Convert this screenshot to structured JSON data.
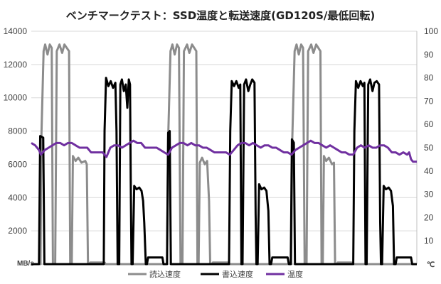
{
  "chart_data": {
    "type": "line",
    "title": "ベンチマークテスト：SSD温度と転送速度(GD120S/最低回転)",
    "left_unit": "MB/s",
    "right_unit": "℃",
    "left_ylim": [
      0,
      14000
    ],
    "left_ticks": [
      "0",
      "2000",
      "4000",
      "6000",
      "8000",
      "10000",
      "12000",
      "14000"
    ],
    "right_ylim": [
      0,
      100
    ],
    "right_ticks": [
      "0",
      "10",
      "20",
      "30",
      "40",
      "50",
      "60",
      "70",
      "80",
      "90",
      "100"
    ],
    "x_range": [
      0,
      100
    ],
    "grid": true,
    "legend_position": "bottom",
    "series": [
      {
        "name": "読込速度",
        "axis": "left",
        "color": "#8c8c8c",
        "points": [
          [
            0,
            0
          ],
          [
            2.4,
            0
          ],
          [
            2.6,
            7500
          ],
          [
            3.2,
            12800
          ],
          [
            3.6,
            13200
          ],
          [
            4.2,
            12600
          ],
          [
            4.8,
            13200
          ],
          [
            5.3,
            13000
          ],
          [
            5.6,
            0
          ],
          [
            6.2,
            0
          ],
          [
            6.6,
            12800
          ],
          [
            7.3,
            13200
          ],
          [
            8,
            12700
          ],
          [
            8.6,
            13200
          ],
          [
            9.8,
            12800
          ],
          [
            10.1,
            0
          ],
          [
            10.5,
            0
          ],
          [
            10.8,
            6500
          ],
          [
            11.5,
            6200
          ],
          [
            12.2,
            6400
          ],
          [
            13,
            6100
          ],
          [
            14,
            6200
          ],
          [
            14.4,
            6000
          ],
          [
            14.7,
            0
          ],
          [
            15,
            0
          ],
          [
            15.3,
            100
          ],
          [
            19,
            100
          ],
          [
            19.3,
            0
          ],
          [
            35.2,
            0
          ],
          [
            35.5,
            7500
          ],
          [
            36.1,
            12800
          ],
          [
            36.6,
            13200
          ],
          [
            37.2,
            12600
          ],
          [
            37.8,
            13200
          ],
          [
            38.3,
            13000
          ],
          [
            38.7,
            0
          ],
          [
            39.2,
            0
          ],
          [
            39.6,
            12800
          ],
          [
            40.4,
            13200
          ],
          [
            41,
            12700
          ],
          [
            41.7,
            13200
          ],
          [
            42.8,
            12800
          ],
          [
            43.1,
            0
          ],
          [
            43.4,
            0
          ],
          [
            43.7,
            6100
          ],
          [
            44.3,
            6400
          ],
          [
            45,
            6000
          ],
          [
            45.6,
            6200
          ],
          [
            46.1,
            3800
          ],
          [
            46.4,
            0
          ],
          [
            46.8,
            0
          ],
          [
            47.1,
            100
          ],
          [
            51,
            100
          ],
          [
            51.3,
            0
          ],
          [
            67.4,
            0
          ],
          [
            67.7,
            7500
          ],
          [
            68.3,
            12800
          ],
          [
            68.8,
            13200
          ],
          [
            69.4,
            12600
          ],
          [
            70,
            13200
          ],
          [
            70.5,
            13000
          ],
          [
            70.9,
            0
          ],
          [
            71.4,
            0
          ],
          [
            71.8,
            12800
          ],
          [
            72.6,
            13200
          ],
          [
            73.2,
            12700
          ],
          [
            73.9,
            13200
          ],
          [
            75,
            12800
          ],
          [
            75.3,
            0
          ],
          [
            75.6,
            0
          ],
          [
            75.9,
            6500
          ],
          [
            76.5,
            6200
          ],
          [
            77.2,
            6400
          ],
          [
            78,
            6000
          ],
          [
            78.5,
            6100
          ],
          [
            78.8,
            0
          ],
          [
            79.2,
            0
          ],
          [
            79.5,
            100
          ],
          [
            83,
            100
          ],
          [
            83.3,
            0
          ],
          [
            100,
            0
          ]
        ]
      },
      {
        "name": "書込速度",
        "axis": "left",
        "color": "#000000",
        "points": [
          [
            0,
            0
          ],
          [
            2,
            0
          ],
          [
            2.3,
            7700
          ],
          [
            3.1,
            7600
          ],
          [
            3.4,
            0
          ],
          [
            18.8,
            0
          ],
          [
            19,
            8000
          ],
          [
            19.4,
            11200
          ],
          [
            20,
            10700
          ],
          [
            20.6,
            11000
          ],
          [
            21.2,
            10600
          ],
          [
            21.8,
            10900
          ],
          [
            22.1,
            8000
          ],
          [
            22.4,
            0
          ],
          [
            22.8,
            0
          ],
          [
            23.1,
            10800
          ],
          [
            23.5,
            11100
          ],
          [
            24,
            10400
          ],
          [
            24.5,
            10800
          ],
          [
            24.9,
            9400
          ],
          [
            25.3,
            11100
          ],
          [
            25.6,
            10800
          ],
          [
            25.8,
            5000
          ],
          [
            26,
            0
          ],
          [
            26.3,
            0
          ],
          [
            26.7,
            4700
          ],
          [
            27.3,
            4500
          ],
          [
            28,
            4600
          ],
          [
            28.6,
            4400
          ],
          [
            29,
            3800
          ],
          [
            29.3,
            2500
          ],
          [
            29.7,
            0
          ],
          [
            30,
            0
          ],
          [
            30.3,
            400
          ],
          [
            34,
            400
          ],
          [
            34.3,
            0
          ],
          [
            35.2,
            0
          ],
          [
            35.5,
            7900
          ],
          [
            35.9,
            8000
          ],
          [
            36.2,
            0
          ],
          [
            51.3,
            0
          ],
          [
            51.6,
            8000
          ],
          [
            52,
            11000
          ],
          [
            52.6,
            10700
          ],
          [
            53.2,
            11000
          ],
          [
            53.8,
            10600
          ],
          [
            54.2,
            10800
          ],
          [
            54.5,
            0
          ],
          [
            54.8,
            0
          ],
          [
            55.2,
            10800
          ],
          [
            55.7,
            11100
          ],
          [
            56.3,
            10400
          ],
          [
            56.8,
            10800
          ],
          [
            57.3,
            11100
          ],
          [
            57.9,
            10900
          ],
          [
            58.2,
            3000
          ],
          [
            58.4,
            0
          ],
          [
            58.7,
            0
          ],
          [
            59.1,
            4800
          ],
          [
            59.7,
            4500
          ],
          [
            60.4,
            4600
          ],
          [
            61,
            4400
          ],
          [
            61.5,
            3200
          ],
          [
            61.8,
            0
          ],
          [
            62.2,
            0
          ],
          [
            62.5,
            400
          ],
          [
            66.5,
            400
          ],
          [
            66.8,
            0
          ],
          [
            67.3,
            0
          ],
          [
            67.6,
            7500
          ],
          [
            68.1,
            7300
          ],
          [
            68.4,
            0
          ],
          [
            83.5,
            0
          ],
          [
            83.8,
            8000
          ],
          [
            84.2,
            11000
          ],
          [
            84.8,
            10600
          ],
          [
            85.4,
            11000
          ],
          [
            86,
            10700
          ],
          [
            86.4,
            10900
          ],
          [
            86.7,
            0
          ],
          [
            87,
            0
          ],
          [
            87.4,
            10800
          ],
          [
            87.9,
            11100
          ],
          [
            88.5,
            10400
          ],
          [
            89,
            10900
          ],
          [
            89.6,
            11000
          ],
          [
            90.2,
            10800
          ],
          [
            90.5,
            2500
          ],
          [
            90.7,
            0
          ],
          [
            91,
            0
          ],
          [
            91.4,
            4700
          ],
          [
            92,
            4500
          ],
          [
            92.7,
            4600
          ],
          [
            93.3,
            4400
          ],
          [
            93.8,
            3500
          ],
          [
            94.1,
            0
          ],
          [
            94.5,
            0
          ],
          [
            94.8,
            400
          ],
          [
            98.5,
            400
          ],
          [
            98.8,
            0
          ],
          [
            100,
            0
          ]
        ]
      },
      {
        "name": "温度",
        "axis": "right",
        "color": "#7030a0",
        "points": [
          [
            0,
            52
          ],
          [
            1,
            51
          ],
          [
            2,
            49
          ],
          [
            2.5,
            47
          ],
          [
            3.5,
            49
          ],
          [
            4.5,
            50
          ],
          [
            5.5,
            51
          ],
          [
            6.5,
            52
          ],
          [
            7.5,
            52
          ],
          [
            8.5,
            51
          ],
          [
            9.5,
            52
          ],
          [
            10.5,
            52
          ],
          [
            11.5,
            51
          ],
          [
            12.5,
            50
          ],
          [
            13.5,
            50
          ],
          [
            14.5,
            50
          ],
          [
            15.5,
            48
          ],
          [
            16.5,
            48
          ],
          [
            17.5,
            48
          ],
          [
            18.5,
            48
          ],
          [
            19.5,
            46
          ],
          [
            20.5,
            50
          ],
          [
            21.5,
            51
          ],
          [
            22.5,
            51
          ],
          [
            23.5,
            50
          ],
          [
            24.5,
            51
          ],
          [
            25.5,
            52
          ],
          [
            26.5,
            53
          ],
          [
            27.5,
            52
          ],
          [
            28.5,
            52
          ],
          [
            29.5,
            50
          ],
          [
            30.5,
            50
          ],
          [
            31.5,
            50
          ],
          [
            32.5,
            50
          ],
          [
            33.5,
            49
          ],
          [
            34.5,
            48
          ],
          [
            35.5,
            47
          ],
          [
            36.5,
            50
          ],
          [
            37.5,
            51
          ],
          [
            38.5,
            52
          ],
          [
            39.5,
            52
          ],
          [
            40.5,
            51
          ],
          [
            41.5,
            52
          ],
          [
            42.5,
            51
          ],
          [
            43.5,
            51
          ],
          [
            44.5,
            50
          ],
          [
            45.5,
            50
          ],
          [
            46.5,
            49
          ],
          [
            47.5,
            48
          ],
          [
            48.5,
            48
          ],
          [
            49.5,
            48
          ],
          [
            50.5,
            48
          ],
          [
            51.5,
            47
          ],
          [
            52.5,
            49
          ],
          [
            53.5,
            51
          ],
          [
            54.5,
            52
          ],
          [
            55.5,
            52
          ],
          [
            56.5,
            51
          ],
          [
            57.5,
            52
          ],
          [
            58.5,
            51
          ],
          [
            59.5,
            50
          ],
          [
            60.5,
            51
          ],
          [
            61.5,
            51
          ],
          [
            62.5,
            50
          ],
          [
            63.5,
            50
          ],
          [
            64.5,
            49
          ],
          [
            65.5,
            48
          ],
          [
            66.5,
            48
          ],
          [
            67.5,
            47
          ],
          [
            68.5,
            49
          ],
          [
            69.5,
            50
          ],
          [
            70.5,
            51
          ],
          [
            71.5,
            52
          ],
          [
            72.5,
            53
          ],
          [
            73.5,
            52
          ],
          [
            74.5,
            52
          ],
          [
            75.5,
            51
          ],
          [
            76.5,
            50
          ],
          [
            77.5,
            51
          ],
          [
            78.5,
            50
          ],
          [
            79.5,
            49
          ],
          [
            80.5,
            48
          ],
          [
            81.5,
            48
          ],
          [
            82.5,
            47
          ],
          [
            83.5,
            47
          ],
          [
            84.5,
            50
          ],
          [
            85.5,
            51
          ],
          [
            86.5,
            50
          ],
          [
            87.5,
            51
          ],
          [
            88.5,
            50
          ],
          [
            89.5,
            50
          ],
          [
            90.5,
            51
          ],
          [
            91.5,
            51
          ],
          [
            92.5,
            50
          ],
          [
            93.5,
            48
          ],
          [
            94.5,
            48
          ],
          [
            95.5,
            47
          ],
          [
            96.5,
            48
          ],
          [
            97.5,
            47
          ],
          [
            98,
            48
          ],
          [
            98.5,
            45
          ],
          [
            99,
            44
          ],
          [
            100,
            44
          ]
        ]
      }
    ]
  }
}
